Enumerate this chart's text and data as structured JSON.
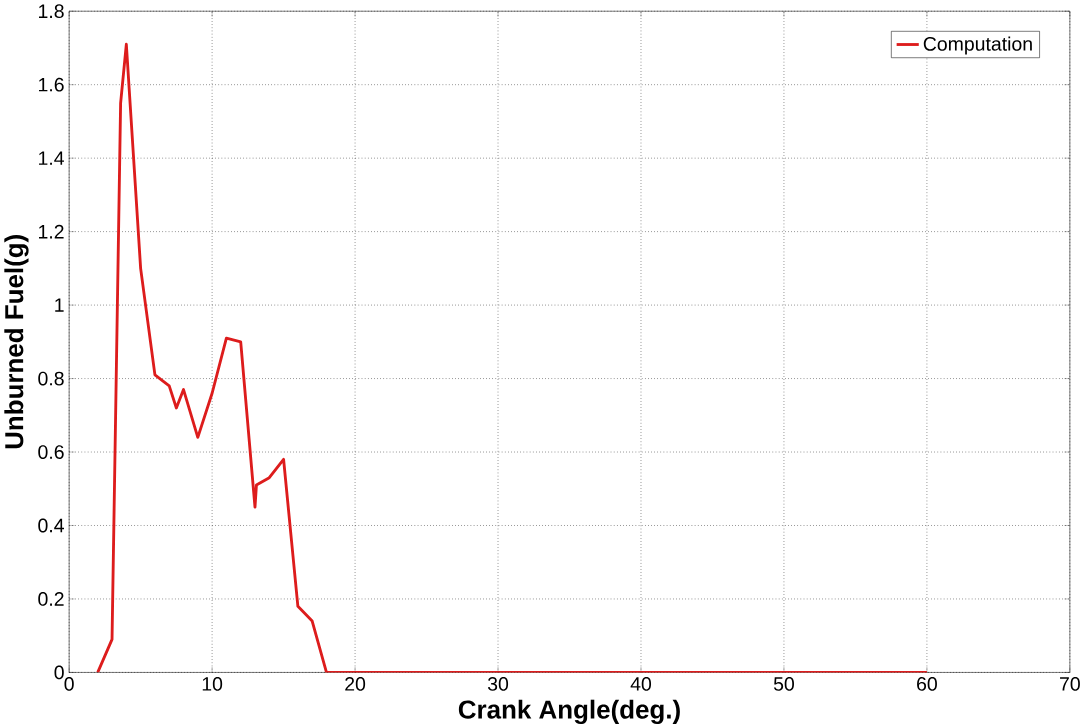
{
  "chart_data": {
    "type": "line",
    "xlabel": "Crank Angle(deg.)",
    "ylabel": "Unburned Fuel(g)",
    "series": [
      {
        "name": "Computation",
        "color": "#dd1c1c",
        "x": [
          2,
          3,
          3.6,
          4,
          5,
          6,
          7,
          7.5,
          8,
          9,
          10,
          11,
          12,
          13,
          13.1,
          14,
          15,
          16,
          17,
          18,
          60
        ],
        "values": [
          0,
          0.09,
          1.55,
          1.71,
          1.1,
          0.81,
          0.78,
          0.72,
          0.77,
          0.64,
          0.76,
          0.91,
          0.9,
          0.45,
          0.51,
          0.53,
          0.58,
          0.18,
          0.14,
          0,
          0
        ]
      }
    ],
    "xlim": [
      0,
      70
    ],
    "ylim": [
      0,
      1.8
    ],
    "xticks": [
      0,
      10,
      20,
      30,
      40,
      50,
      60,
      70
    ],
    "yticks": [
      0,
      0.2,
      0.4,
      0.6,
      0.8,
      1,
      1.2,
      1.4,
      1.6,
      1.8
    ],
    "grid": true,
    "legend": "top right"
  }
}
